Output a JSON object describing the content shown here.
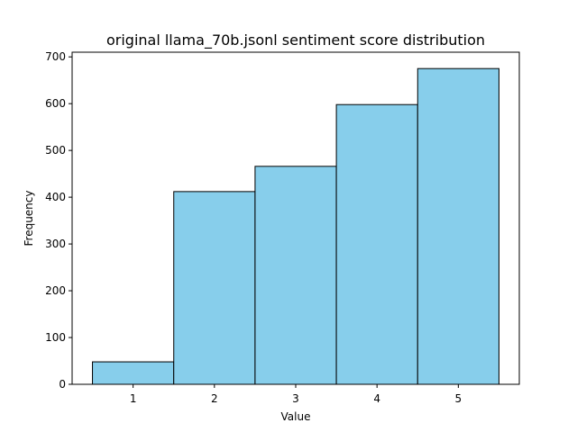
{
  "chart_data": {
    "type": "bar",
    "title": "original llama_70b.jsonl sentiment score distribution",
    "xlabel": "Value",
    "ylabel": "Frequency",
    "categories": [
      "1",
      "2",
      "3",
      "4",
      "5"
    ],
    "values": [
      48,
      412,
      466,
      598,
      675
    ],
    "xlim": [
      0.25,
      5.75
    ],
    "ylim": [
      0,
      710
    ],
    "yticks": [
      0,
      100,
      200,
      300,
      400,
      500,
      600,
      700
    ],
    "grid": false,
    "bar_color": "#87ceeb",
    "edge_color": "#000000"
  }
}
